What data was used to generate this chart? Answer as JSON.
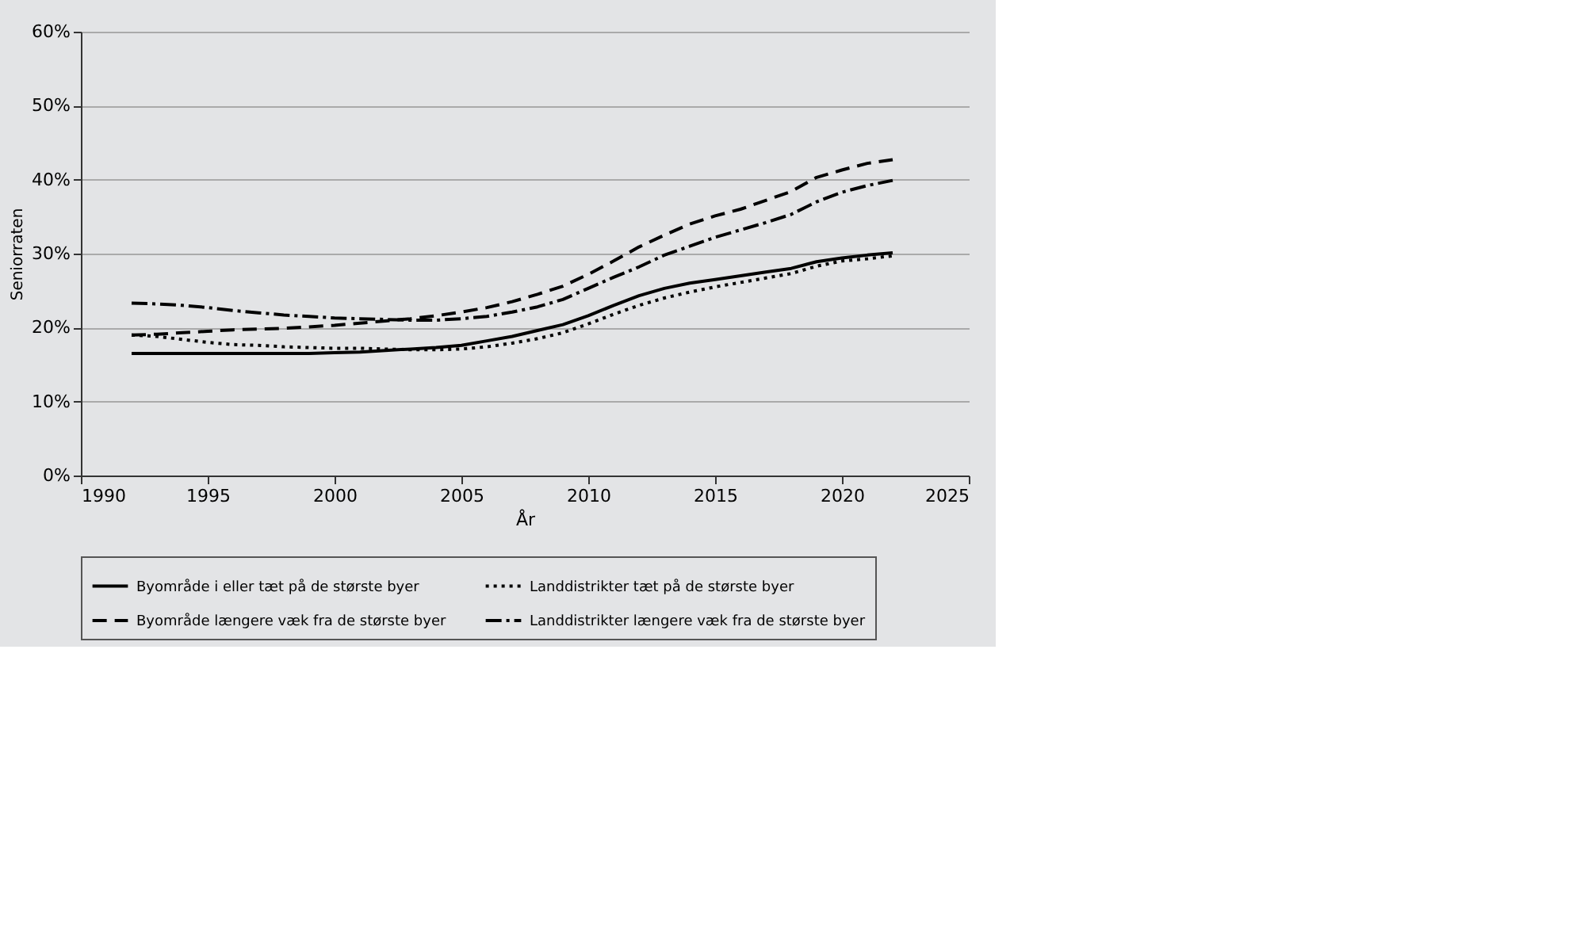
{
  "chart_data": {
    "type": "line",
    "xlabel": "År",
    "ylabel": "Seniorraten",
    "x": [
      1992,
      1993,
      1994,
      1995,
      1996,
      1997,
      1998,
      1999,
      2000,
      2001,
      2002,
      2003,
      2004,
      2005,
      2006,
      2007,
      2008,
      2009,
      2010,
      2011,
      2012,
      2013,
      2014,
      2015,
      2016,
      2017,
      2018,
      2019,
      2020,
      2021,
      2022
    ],
    "series": [
      {
        "name": "Byområde i eller tæt på de største byer",
        "color": "#000000",
        "line_style": "solid",
        "values": [
          16.5,
          16.5,
          16.5,
          16.5,
          16.5,
          16.5,
          16.5,
          16.5,
          16.6,
          16.7,
          16.9,
          17.1,
          17.3,
          17.6,
          18.2,
          18.8,
          19.6,
          20.4,
          21.6,
          23.0,
          24.3,
          25.3,
          26.0,
          26.5,
          27.0,
          27.5,
          28.0,
          28.9,
          29.4,
          29.8,
          30.1
        ]
      },
      {
        "name": "Byområde længere væk fra de største byer",
        "color": "#000000",
        "line_style": "dashed",
        "values": [
          19.0,
          19.1,
          19.3,
          19.5,
          19.7,
          19.8,
          19.9,
          20.1,
          20.3,
          20.6,
          20.9,
          21.2,
          21.6,
          22.1,
          22.7,
          23.5,
          24.5,
          25.6,
          27.2,
          29.0,
          30.9,
          32.5,
          34.0,
          35.1,
          36.0,
          37.2,
          38.4,
          40.3,
          41.3,
          42.2,
          42.7
        ]
      },
      {
        "name": "Landdistrikter tæt på de største byer",
        "color": "#000000",
        "line_style": "dotted",
        "values": [
          19.0,
          18.8,
          18.4,
          18.0,
          17.7,
          17.6,
          17.4,
          17.3,
          17.2,
          17.2,
          17.1,
          17.0,
          17.0,
          17.1,
          17.4,
          17.9,
          18.5,
          19.3,
          20.5,
          21.8,
          23.0,
          24.0,
          24.8,
          25.5,
          26.1,
          26.7,
          27.3,
          28.3,
          29.0,
          29.3,
          29.7
        ]
      },
      {
        "name": "Landdistrikter længere væk fra de største byer",
        "color": "#000000",
        "line_style": "dashdot",
        "values": [
          23.3,
          23.2,
          23.0,
          22.7,
          22.3,
          22.0,
          21.7,
          21.5,
          21.3,
          21.2,
          21.1,
          21.0,
          21.0,
          21.2,
          21.5,
          22.1,
          22.8,
          23.8,
          25.3,
          26.8,
          28.2,
          29.8,
          31.0,
          32.2,
          33.2,
          34.2,
          35.3,
          37.0,
          38.3,
          39.2,
          39.9
        ]
      }
    ],
    "xlim": [
      1990,
      2025
    ],
    "xticks": [
      1990,
      1995,
      2000,
      2005,
      2010,
      2015,
      2020,
      2025
    ],
    "ylim": [
      0,
      60
    ],
    "yticks": [
      {
        "value": 0,
        "label": "0%"
      },
      {
        "value": 10,
        "label": "10%"
      },
      {
        "value": 20,
        "label": "20%"
      },
      {
        "value": 30,
        "label": "30%"
      },
      {
        "value": 40,
        "label": "40%"
      },
      {
        "value": 50,
        "label": "50%"
      },
      {
        "value": 60,
        "label": "60%"
      }
    ],
    "grid": "y",
    "legend": "bottom"
  }
}
